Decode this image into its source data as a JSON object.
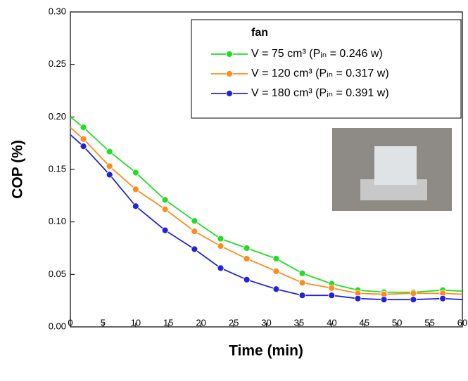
{
  "chart_data": {
    "type": "line",
    "xlabel": "Time (min)",
    "ylabel": "COP (%)",
    "legend_title": "fan",
    "x": [
      0,
      2,
      6,
      10,
      14.5,
      19,
      23,
      27,
      31.5,
      35.5,
      40,
      44,
      48,
      52.5,
      57,
      60
    ],
    "series": [
      {
        "name": "V = 75 cm³  (Pᵢₙ = 0.246 w)",
        "color": "#22dd22",
        "values": [
          0.2,
          0.19,
          0.167,
          0.147,
          0.121,
          0.101,
          0.084,
          0.075,
          0.065,
          0.051,
          0.041,
          0.035,
          0.033,
          0.033,
          0.035,
          0.034
        ]
      },
      {
        "name": "V = 120 cm³ (Pᵢₙ = 0.317 w)",
        "color": "#ff8c1a",
        "values": [
          0.19,
          0.179,
          0.153,
          0.131,
          0.112,
          0.091,
          0.077,
          0.065,
          0.053,
          0.042,
          0.037,
          0.032,
          0.031,
          0.032,
          0.032,
          0.031
        ]
      },
      {
        "name": "V = 180 cm³ (Pᵢₙ = 0.391 w)",
        "color": "#2222dd",
        "values": [
          0.183,
          0.172,
          0.145,
          0.115,
          0.092,
          0.074,
          0.056,
          0.045,
          0.036,
          0.03,
          0.03,
          0.027,
          0.026,
          0.026,
          0.027,
          0.026
        ]
      }
    ],
    "xlim": [
      0,
      60
    ],
    "xticks": [
      0,
      5,
      10,
      15,
      20,
      25,
      30,
      35,
      40,
      45,
      50,
      55,
      60
    ],
    "ylim": [
      0,
      0.3
    ],
    "yticks": [
      {
        "value": 0,
        "label": "0.00"
      },
      {
        "value": 0.05,
        "label": "0.05"
      },
      {
        "value": 0.1,
        "label": "0.10"
      },
      {
        "value": 0.15,
        "label": "0.15"
      },
      {
        "value": 0.2,
        "label": "0.20"
      },
      {
        "value": 0.25,
        "label": "0.25"
      },
      {
        "value": 0.3,
        "label": "0.30"
      }
    ],
    "legend": "upper right"
  }
}
